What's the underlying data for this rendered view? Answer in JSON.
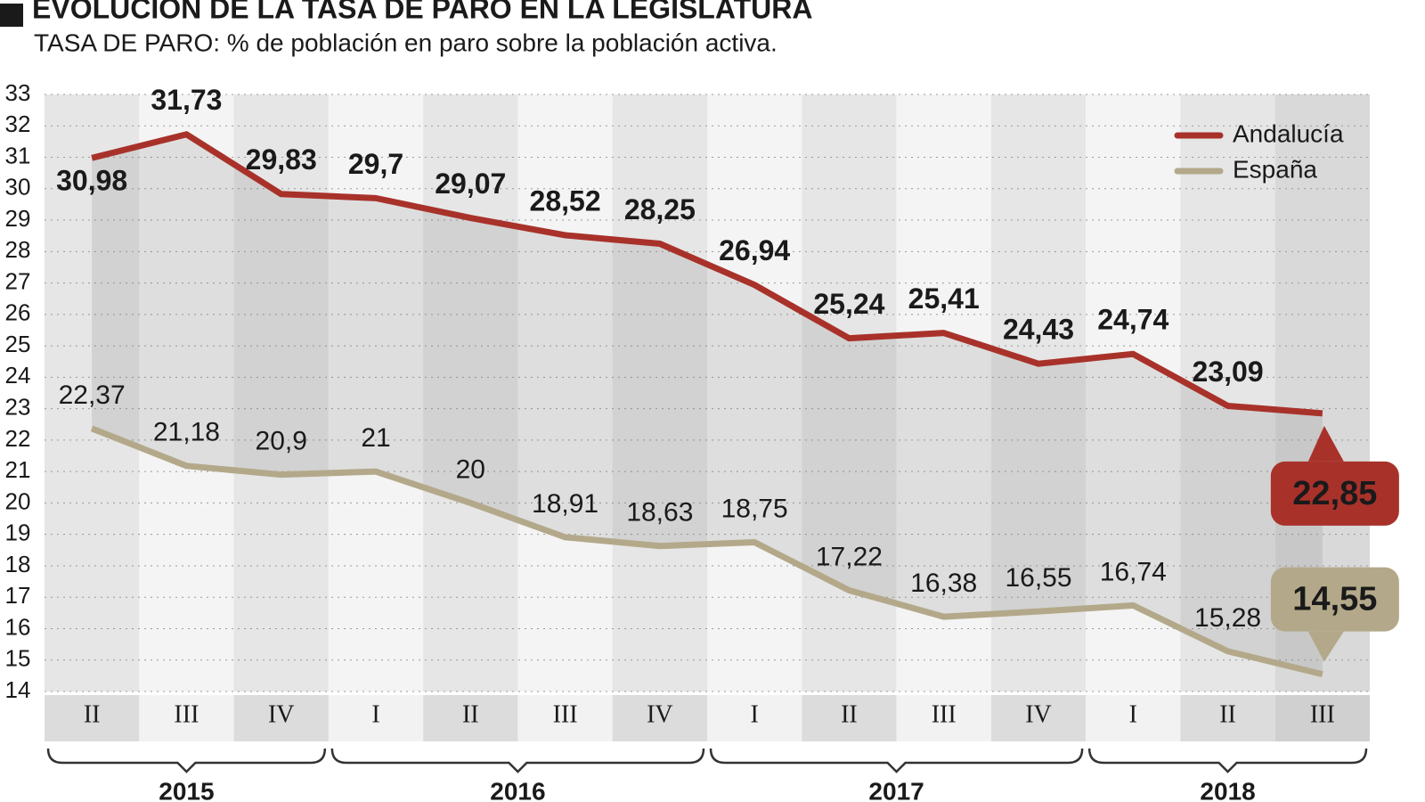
{
  "chart_data": {
    "type": "line",
    "title": "EVOLUCIÓN DE LA TASA DE PARO EN LA LEGISLATURA",
    "subtitle": "TASA DE PARO: % de población en paro sobre la población activa.",
    "categories": [
      "II",
      "III",
      "IV",
      "I",
      "II",
      "III",
      "IV",
      "I",
      "II",
      "III",
      "IV",
      "I",
      "II",
      "III"
    ],
    "years": [
      "2015",
      "2016",
      "2017",
      "2018"
    ],
    "series": [
      {
        "name": "Andalucía",
        "color": "#a8322a",
        "values": [
          30.98,
          31.73,
          29.83,
          29.7,
          29.07,
          28.52,
          28.25,
          26.94,
          25.24,
          25.41,
          24.43,
          24.74,
          23.09,
          22.85
        ],
        "value_labels": [
          "30,98",
          "31,73",
          "29,83",
          "29,7",
          "29,07",
          "28,52",
          "28,25",
          "26,94",
          "25,24",
          "25,41",
          "24,43",
          "24,74",
          "23,09",
          "22,85"
        ]
      },
      {
        "name": "España",
        "color": "#b3a98a",
        "values": [
          22.37,
          21.18,
          20.9,
          21,
          20,
          18.91,
          18.63,
          18.75,
          17.22,
          16.38,
          16.55,
          16.74,
          15.28,
          14.55
        ],
        "value_labels": [
          "22,37",
          "21,18",
          "20,9",
          "21",
          "20",
          "18,91",
          "18,63",
          "18,75",
          "17,22",
          "16,38",
          "16,55",
          "16,74",
          "15,28",
          "14,55"
        ]
      }
    ],
    "ylim": [
      14,
      33
    ],
    "yticks": [
      14,
      15,
      16,
      17,
      18,
      19,
      20,
      21,
      22,
      23,
      24,
      25,
      26,
      27,
      28,
      29,
      30,
      31,
      32,
      33
    ],
    "grid": true,
    "legend": "top-right"
  }
}
